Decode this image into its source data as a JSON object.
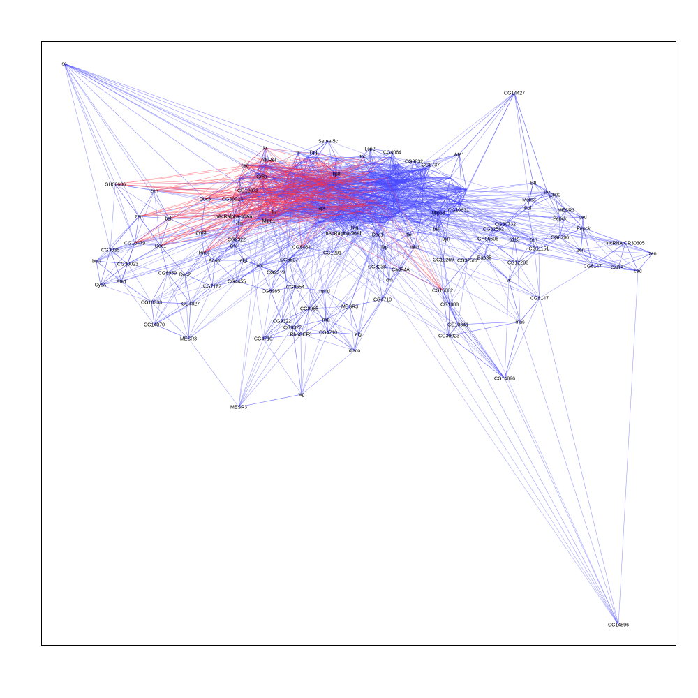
{
  "colors": {
    "edge_default": "#4a4aff",
    "edge_highlight": "#ff3344",
    "label": "#000000",
    "frame": "#000000"
  },
  "nodes": [
    {
      "id": "sc",
      "label": "sc"
    },
    {
      "id": "CG14427",
      "label": "CG14427"
    },
    {
      "id": "Sema5c",
      "label": "Sema-5c"
    },
    {
      "id": "kr",
      "label": "kr"
    },
    {
      "id": "Lcp2",
      "label": "Lcp2"
    },
    {
      "id": "CG4064",
      "label": "CG4064"
    },
    {
      "id": "Ate1a",
      "label": "Ate1"
    },
    {
      "id": "cad1",
      "label": "cad"
    },
    {
      "id": "NKRel",
      "label": "NKRel"
    },
    {
      "id": "GH06606a",
      "label": "GH06606"
    },
    {
      "id": "zen1",
      "label": "zen"
    },
    {
      "id": "zen2",
      "label": "zen"
    },
    {
      "id": "bsh",
      "label": "bsh"
    },
    {
      "id": "Doc3",
      "label": "Doc3"
    },
    {
      "id": "CG30023a",
      "label": "CG30023"
    },
    {
      "id": "CG12973",
      "label": "CG12973"
    },
    {
      "id": "nAcRalpha",
      "label": "nAcRalpha-96Aa"
    },
    {
      "id": "Mipp1",
      "label": "Mipp1"
    },
    {
      "id": "ftz",
      "label": "ftz"
    },
    {
      "id": "dm",
      "label": "dm"
    },
    {
      "id": "CG3036",
      "label": "CG3036"
    },
    {
      "id": "CG10479",
      "label": "CG10479"
    },
    {
      "id": "Doc1a",
      "label": "Doc1"
    },
    {
      "id": "bun1",
      "label": "bun"
    },
    {
      "id": "CG30023b",
      "label": "CG30023"
    },
    {
      "id": "CycA",
      "label": "CycA"
    },
    {
      "id": "Ate1b",
      "label": "Ate1"
    },
    {
      "id": "CG18333",
      "label": "CG18333"
    },
    {
      "id": "CG14070",
      "label": "CG14070"
    },
    {
      "id": "MESR3a",
      "label": "MESR3"
    },
    {
      "id": "MESR3b",
      "label": "MESR3"
    },
    {
      "id": "wg",
      "label": "wg"
    },
    {
      "id": "disco",
      "label": "disco"
    },
    {
      "id": "RhoGEF3",
      "label": "RhoGEF3"
    },
    {
      "id": "CG4710a",
      "label": "CG4710"
    },
    {
      "id": "CG4710b",
      "label": "CG4710"
    },
    {
      "id": "CG4710c",
      "label": "CG4710"
    },
    {
      "id": "CG9322a",
      "label": "CG9322"
    },
    {
      "id": "CG9322b",
      "label": "CG9322"
    },
    {
      "id": "elgi1",
      "label": "elgi"
    },
    {
      "id": "elgi2",
      "label": "elgi"
    },
    {
      "id": "hkb",
      "label": "hkb"
    },
    {
      "id": "MESR3c",
      "label": "MESR3"
    },
    {
      "id": "CG8654",
      "label": "CG8654"
    },
    {
      "id": "CG8965",
      "label": "CG8965"
    },
    {
      "id": "mmd",
      "label": "mmd"
    },
    {
      "id": "CG4827",
      "label": "CG4827"
    },
    {
      "id": "CG6464",
      "label": "CG6464"
    },
    {
      "id": "CG1291",
      "label": "CG1291"
    },
    {
      "id": "CG8238",
      "label": "CG8238"
    },
    {
      "id": "CadFdA",
      "label": "CadF4A"
    },
    {
      "id": "dm2",
      "label": "dm"
    },
    {
      "id": "lap",
      "label": "lap"
    },
    {
      "id": "mhd",
      "label": "mhd"
    },
    {
      "id": "Doc1b",
      "label": "Doc1"
    },
    {
      "id": "tio",
      "label": "tio"
    },
    {
      "id": "byn",
      "label": "byn"
    },
    {
      "id": "CG10269",
      "label": "CG10269"
    },
    {
      "id": "CG32582",
      "label": "CG32582"
    },
    {
      "id": "Bap35",
      "label": "Bap35"
    },
    {
      "id": "GH06606b",
      "label": "GH06606"
    },
    {
      "id": "sc2",
      "label": "sc"
    },
    {
      "id": "CG16082",
      "label": "CG16082"
    },
    {
      "id": "CG1888",
      "label": "CG1888"
    },
    {
      "id": "CG10341",
      "label": "CG10341"
    },
    {
      "id": "CG30023c",
      "label": "CG30023"
    },
    {
      "id": "CG14896a",
      "label": "CG14896"
    },
    {
      "id": "mas",
      "label": "mas"
    },
    {
      "id": "CG8147a",
      "label": "CG8147"
    },
    {
      "id": "CG8147b",
      "label": "CG8147"
    },
    {
      "id": "CG12288",
      "label": "CG12288"
    },
    {
      "id": "CG11151",
      "label": "CG11151"
    },
    {
      "id": "CG8796",
      "label": "CG8796"
    },
    {
      "id": "Pepck1",
      "label": "Pepck"
    },
    {
      "id": "Pepck2",
      "label": "Pepck"
    },
    {
      "id": "cad2",
      "label": "cad"
    },
    {
      "id": "cad3",
      "label": "cad"
    },
    {
      "id": "CaBP1",
      "label": "CaBP1"
    },
    {
      "id": "zen3",
      "label": "zen"
    },
    {
      "id": "zen4",
      "label": "zen"
    },
    {
      "id": "zen5",
      "label": "zen"
    },
    {
      "id": "lncRNA",
      "label": "lncRNA:CR30305"
    },
    {
      "id": "MESR3d",
      "label": "MESR3"
    },
    {
      "id": "Mem3",
      "label": "Mem3"
    },
    {
      "id": "Z600",
      "label": "Z600"
    },
    {
      "id": "tbx",
      "label": "tbx"
    },
    {
      "id": "Btl",
      "label": "Btl"
    },
    {
      "id": "Pbl",
      "label": "Pbl"
    },
    {
      "id": "CG30732",
      "label": "CG30732"
    },
    {
      "id": "CG32582b",
      "label": "CG32582"
    },
    {
      "id": "p115",
      "label": "p115"
    },
    {
      "id": "bel",
      "label": "bel"
    },
    {
      "id": "CG10631",
      "label": "CG10631"
    },
    {
      "id": "CG14896b",
      "label": "CG14896"
    },
    {
      "id": "Adam",
      "label": "Adam"
    },
    {
      "id": "ebi",
      "label": "ebi"
    },
    {
      "id": "CG9319",
      "label": "CG9319"
    },
    {
      "id": "CG6627",
      "label": "CG6627"
    },
    {
      "id": "CG4455",
      "label": "CG4455"
    },
    {
      "id": "CG6985",
      "label": "CG6985"
    },
    {
      "id": "Hmx",
      "label": "Hmx"
    },
    {
      "id": "CG9322c",
      "label": "CG9322"
    },
    {
      "id": "Doc2",
      "label": "Doc2"
    },
    {
      "id": "nAcRalpha2",
      "label": "nAcRalpha-96Ab"
    },
    {
      "id": "pyd3",
      "label": "pyd3"
    },
    {
      "id": "cnc",
      "label": "cnc"
    },
    {
      "id": "CG7182",
      "label": "CG7182"
    },
    {
      "id": "CG6959",
      "label": "CG6959"
    },
    {
      "id": "Dpp",
      "label": "Dpp"
    },
    {
      "id": "tll",
      "label": "tll"
    },
    {
      "id": "Ilp8",
      "label": "Ilp8"
    },
    {
      "id": "Mipp3",
      "label": "Mipp3"
    },
    {
      "id": "apt",
      "label": "apt"
    },
    {
      "id": "Nlg",
      "label": "Nlg"
    },
    {
      "id": "CG8832",
      "label": "CG8832"
    },
    {
      "id": "CG8737",
      "label": "CG8737"
    },
    {
      "id": "toc",
      "label": "toc"
    },
    {
      "id": "Gr8a",
      "label": "Gr8a"
    }
  ]
}
